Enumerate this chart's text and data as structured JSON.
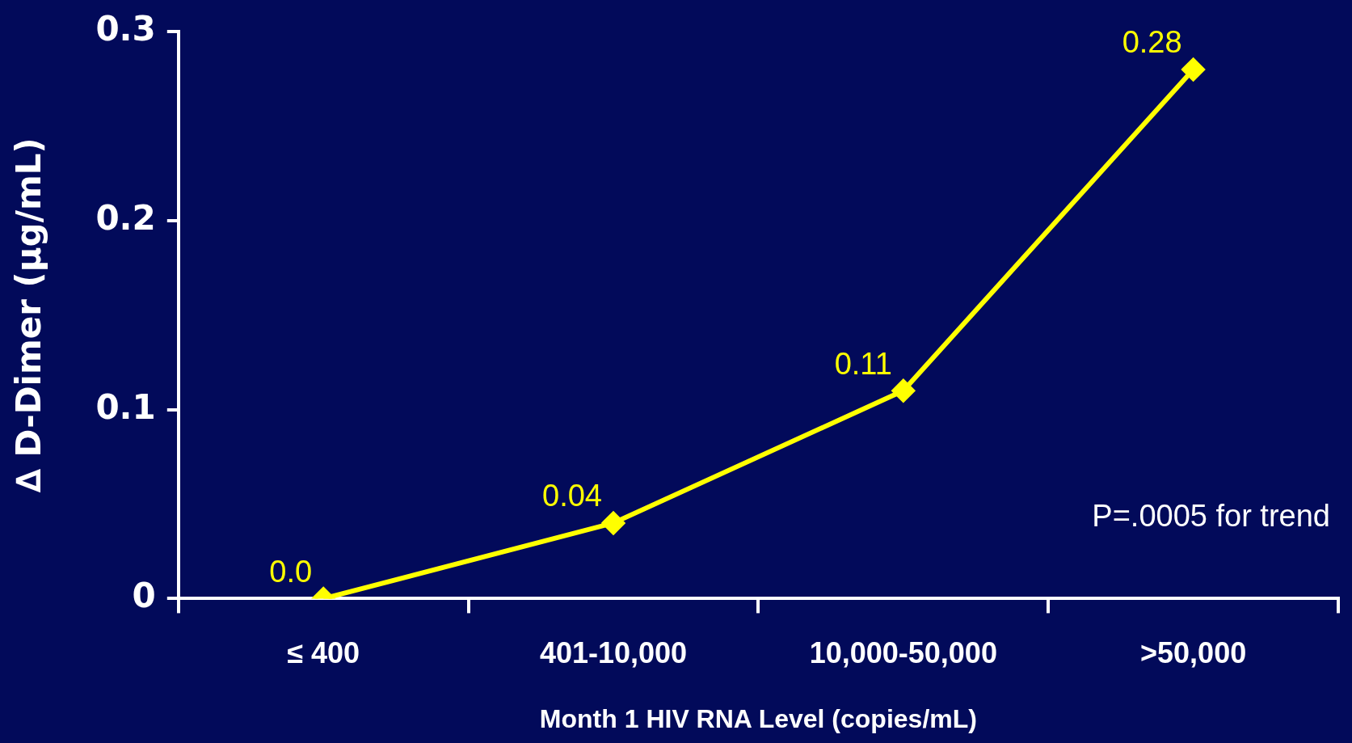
{
  "chart_data": {
    "type": "line",
    "xlabel": "Month 1 HIV RNA Level (copies/mL)",
    "ylabel": "∆ D-Dimer (µg/mL)",
    "categories": [
      "≤ 400",
      "401-10,000",
      "10,000-50,000",
      ">50,000"
    ],
    "series": [
      {
        "color": "#ffff00",
        "values": [
          0,
          0.04,
          0.11,
          0.28
        ],
        "value_labels": [
          "0.0",
          "0.04",
          "0.11",
          "0.28"
        ]
      }
    ],
    "ylim": [
      0,
      0.3
    ],
    "yticks": [
      0,
      0.1,
      0.2,
      0.3
    ],
    "marker": "diamond",
    "line_style": "solid",
    "annotations": [
      "P=.0005 for trend"
    ]
  }
}
